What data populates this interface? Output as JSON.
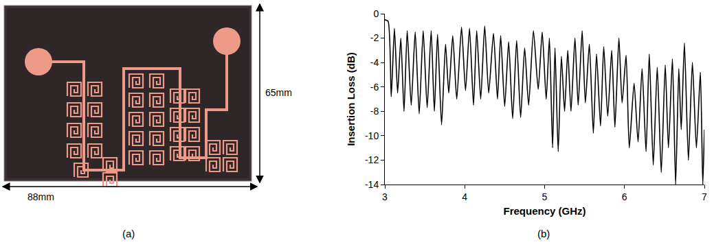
{
  "photo": {
    "label": "(a)",
    "width_label": "88mm",
    "height_label": "65mm"
  },
  "chart_data": {
    "type": "line",
    "panel_label": "(b)",
    "x_label": "Frequency (GHz)",
    "y_label": "Insertion Loss (dB)",
    "x": [
      3.0,
      3.04,
      3.08,
      3.12,
      3.16,
      3.2,
      3.24,
      3.28,
      3.33,
      3.38,
      3.43,
      3.48,
      3.53,
      3.58,
      3.62,
      3.66,
      3.71,
      3.76,
      3.8,
      3.85,
      3.9,
      3.96,
      4.01,
      4.06,
      4.11,
      4.15,
      4.2,
      4.25,
      4.3,
      4.36,
      4.41,
      4.45,
      4.5,
      4.55,
      4.6,
      4.65,
      4.7,
      4.75,
      4.8,
      4.86,
      4.92,
      4.97,
      5.02,
      5.06,
      5.1,
      5.13,
      5.17,
      5.21,
      5.25,
      5.29,
      5.33,
      5.38,
      5.42,
      5.47,
      5.51,
      5.56,
      5.61,
      5.65,
      5.7,
      5.74,
      5.79,
      5.84,
      5.88,
      5.93,
      5.97,
      6.02,
      6.06,
      6.12,
      6.17,
      6.22,
      6.27,
      6.31,
      6.36,
      6.41,
      6.46,
      6.51,
      6.55,
      6.6,
      6.64,
      6.68,
      6.71,
      6.75,
      6.8,
      6.85,
      6.9,
      6.95,
      6.98,
      7.0
    ],
    "series": [
      {
        "color": "#000000",
        "values": [
          -0.5,
          -0.6,
          -6.8,
          -1.2,
          -6.5,
          -2.0,
          -8.0,
          -1.4,
          -7.5,
          -1.5,
          -8.2,
          -1.4,
          -7.7,
          -1.4,
          -8.0,
          -1.7,
          -9.1,
          -2.5,
          -6.5,
          -1.8,
          -7.0,
          -1.1,
          -6.3,
          -1.2,
          -7.5,
          -1.4,
          -7.0,
          -1.0,
          -6.5,
          -1.6,
          -7.0,
          -1.8,
          -7.6,
          -2.3,
          -8.6,
          -2.2,
          -8.5,
          -2.8,
          -7.5,
          -1.4,
          -6.2,
          -1.5,
          -7.0,
          -2.0,
          -11.0,
          -2.8,
          -11.3,
          -3.5,
          -8.0,
          -3.0,
          -8.0,
          -2.0,
          -7.5,
          -1.4,
          -7.3,
          -2.5,
          -9.8,
          -3.3,
          -9.2,
          -2.7,
          -8.4,
          -3.0,
          -9.3,
          -2.0,
          -7.3,
          -3.4,
          -11.0,
          -5.7,
          -10.5,
          -4.5,
          -11.3,
          -3.3,
          -12.4,
          -4.4,
          -13.0,
          -4.2,
          -11.0,
          -3.7,
          -14.0,
          -4.5,
          -9.5,
          -2.4,
          -12.0,
          -4.0,
          -11.0,
          -4.8,
          -14.0,
          -9.5
        ]
      }
    ],
    "xlim": [
      3,
      7
    ],
    "xticks": [
      3,
      4,
      5,
      6,
      7
    ],
    "ylim": [
      -14,
      0
    ],
    "yticks": [
      -14,
      -12,
      -10,
      -8,
      -6,
      -4,
      -2,
      0
    ],
    "grid": false,
    "line_style": "solid"
  }
}
